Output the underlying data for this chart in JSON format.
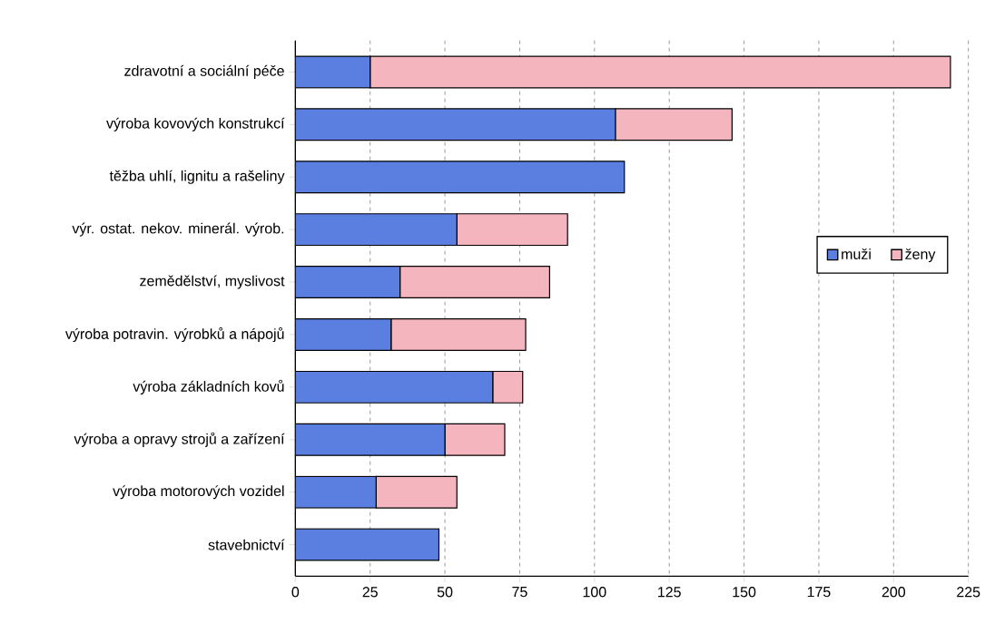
{
  "chart_data": {
    "type": "bar",
    "orientation": "horizontal",
    "stacked": true,
    "categories": [
      "zdravotní a sociální péče",
      "výroba kovových konstrukcí",
      "těžba uhlí, lignitu a rašeliny",
      "výr. ostat. nekov. minerál. výrob.",
      "zemědělství, myslivost",
      "výroba potravin. výrobků a nápojů",
      "výroba základních kovů",
      "výroba a opravy strojů a zařízení",
      "výroba motorových vozidel",
      "stavebnictví"
    ],
    "series": [
      {
        "name": "muži",
        "color": "#5a7fe0",
        "values": [
          25,
          107,
          110,
          54,
          35,
          32,
          66,
          50,
          27,
          48
        ]
      },
      {
        "name": "ženy",
        "color": "#f5b5bf",
        "values": [
          194,
          39,
          null,
          37,
          50,
          45,
          10,
          20,
          27,
          null
        ]
      }
    ],
    "xlim": [
      0,
      225
    ],
    "xticks": [
      0,
      25,
      50,
      75,
      100,
      125,
      150,
      175,
      200,
      225
    ],
    "grid": "x",
    "legend": "right"
  }
}
